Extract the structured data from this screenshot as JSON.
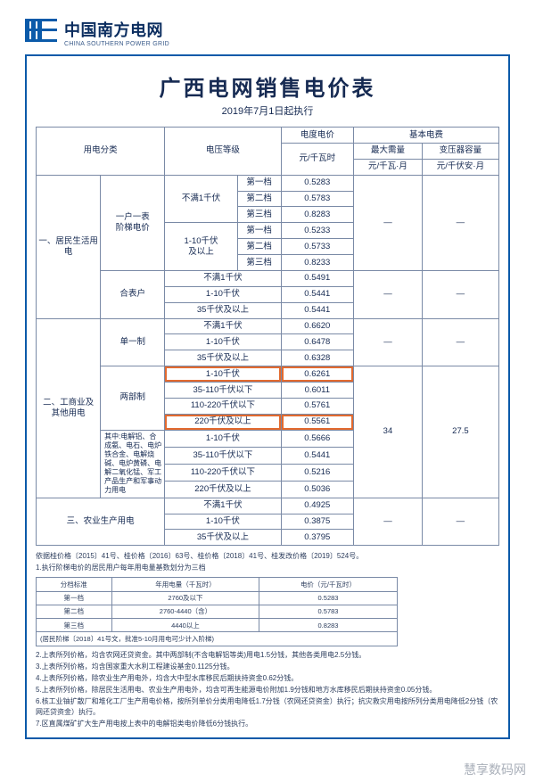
{
  "logo": {
    "cn": "中国南方电网",
    "en": "CHINA SOUTHERN POWER GRID"
  },
  "title": "广西电网销售电价表",
  "subtitle": "2019年7月1日起执行",
  "headers": {
    "category": "用电分类",
    "voltage": "电压等级",
    "energy_price": "电度电价",
    "basic_fee": "基本电费",
    "energy_unit": "元/千瓦时",
    "max_demand": "最大需量",
    "max_demand_unit": "元/千瓦·月",
    "transformer": "变压器容量",
    "transformer_unit": "元/千伏安·月"
  },
  "cat1": {
    "name": "一、居民生活用电",
    "g1": "一户一表\n阶梯电价",
    "g2": "合表户"
  },
  "r1": {
    "v1": "不满1千伏",
    "v2": "1-10千伏\n及以上",
    "t1": "第一档",
    "t2": "第二档",
    "t3": "第三档",
    "p11": "0.5283",
    "p12": "0.5783",
    "p13": "0.8283",
    "p21": "0.5233",
    "p22": "0.5733",
    "p23": "0.8233"
  },
  "r1b": {
    "v1": "不满1千伏",
    "v2": "1-10千伏",
    "v3": "35千伏及以上",
    "p1": "0.5491",
    "p2": "0.5441",
    "p3": "0.5441"
  },
  "cat2": {
    "name": "二、工商业及\n其他用电",
    "g1": "单一制",
    "g2": "两部制",
    "g3": "其中:电解铝、合成氨、电石、电炉铁合金、电解烧碱、电炉黄磷、电解二氧化锰、军工产品生产和军事动力用电"
  },
  "r2a": {
    "v1": "不满1千伏",
    "v2": "1-10千伏",
    "v3": "35千伏及以上",
    "p1": "0.6620",
    "p2": "0.6478",
    "p3": "0.6328"
  },
  "r2b": {
    "v1": "1-10千伏",
    "v2": "35-110千伏以下",
    "v3": "110-220千伏以下",
    "v4": "220千伏及以上",
    "p1": "0.6261",
    "p2": "0.6011",
    "p3": "0.5761",
    "p4": "0.5561"
  },
  "r2c": {
    "v1": "1-10千伏",
    "v2": "35-110千伏以下",
    "v3": "110-220千伏以下",
    "v4": "220千伏及以上",
    "p1": "0.5666",
    "p2": "0.5441",
    "p3": "0.5216",
    "p4": "0.5036"
  },
  "basic": {
    "demand": "34",
    "cap": "27.5"
  },
  "cat3": {
    "name": "三、农业生产用电"
  },
  "r3": {
    "v1": "不满1千伏",
    "v2": "1-10千伏",
    "v3": "35千伏及以上",
    "p1": "0.4925",
    "p2": "0.3875",
    "p3": "0.3795"
  },
  "dash": "—",
  "ref": "依据桂价格〔2015〕41号、桂价格〔2016〕63号、桂价格〔2018〕41号、桂发改价格〔2019〕524号。",
  "notes": {
    "n1": "1.执行阶梯电价的居民用户每年用电量基数划分为三档",
    "n2": "2.上表所列价格，均含农网还贷资金。其中两部制(不含电解铝等类)用电1.5分钱，其他各类用电2.5分钱。",
    "n3": "3.上表所列价格，均含国家重大水利工程建设基金0.1125分钱。",
    "n4": "4.上表所列价格，除农业生产用电外，均含大中型水库移民后期扶持资金0.62分钱。",
    "n5": "5.上表所列价格，除居民生活用电、农业生产用电外，均含可再生能源电价附加1.9分钱和地方水库移民后期扶持资金0.05分钱。",
    "n6": "6.核工业铀扩散厂和堆化工厂生产用电价格，按所列单价分类用电降低1.7分钱（农网还贷资金）执行；抗灾救灾用电按所列分类用电降低2分钱（农网还贷资金）执行。",
    "n7": "7.区直属煤矿扩大生产用电按上表中的电解铝类电价降低6分钱执行。"
  },
  "t2": {
    "h1": "分档标准",
    "h2": "年用电量（千瓦时）",
    "h3": "电价（元/千瓦时）",
    "r1a": "第一档",
    "r1b": "2760及以下",
    "r1c": "0.5283",
    "r2a": "第二档",
    "r2b": "2760-4440（含）",
    "r2c": "0.5783",
    "r3a": "第三档",
    "r3b": "4440以上",
    "r3c": "0.8283",
    "foot": "(居民阶梯〔2018〕41号文，批准5-10月用电可少计入阶梯)"
  },
  "watermark": "慧享数码网"
}
